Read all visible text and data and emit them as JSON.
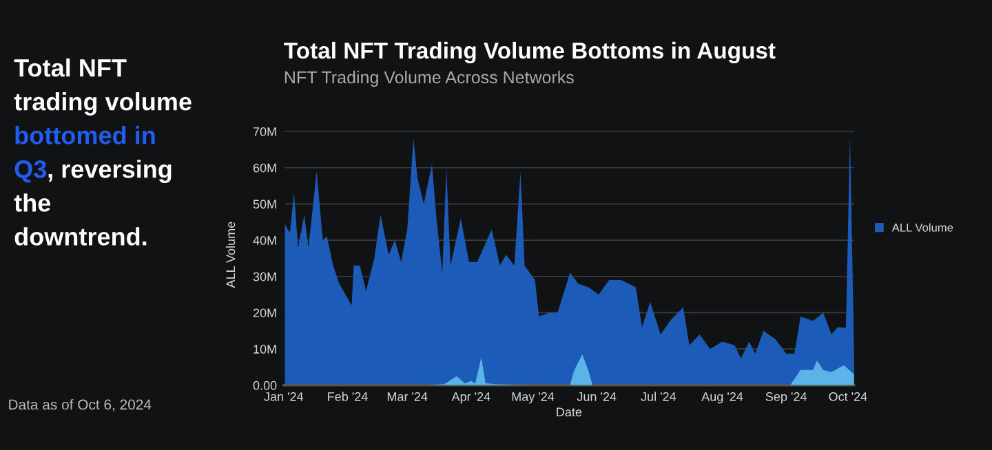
{
  "chart_data": {
    "type": "area",
    "title": "Total NFT Trading Volume Bottoms in August",
    "subtitle": "NFT Trading Volume Across Networks",
    "xlabel": "Date",
    "ylabel": "ALL Volume",
    "annotations": [
      "Total NFT",
      "trading volume",
      "bottomed in",
      "Q3",
      ", reversing",
      "the",
      "downtrend.",
      "Data as of Oct 6, 2024"
    ],
    "series": [
      {
        "name": "ALL Volume",
        "color": "#1c5cb8",
        "x": [
          "2024-01-01",
          "2024-01-04",
          "2024-01-06",
          "2024-01-08",
          "2024-01-11",
          "2024-01-13",
          "2024-01-17",
          "2024-01-20",
          "2024-01-22",
          "2024-01-25",
          "2024-01-28",
          "2024-01-30",
          "2024-02-03",
          "2024-02-04",
          "2024-02-07",
          "2024-02-10",
          "2024-02-14",
          "2024-02-17",
          "2024-02-21",
          "2024-02-24",
          "2024-02-27",
          "2024-03-01",
          "2024-03-04",
          "2024-03-06",
          "2024-03-09",
          "2024-03-13",
          "2024-03-15",
          "2024-03-18",
          "2024-03-20",
          "2024-03-22",
          "2024-03-27",
          "2024-03-31",
          "2024-04-04",
          "2024-04-11",
          "2024-04-15",
          "2024-04-18",
          "2024-04-22",
          "2024-04-25",
          "2024-04-27",
          "2024-05-02",
          "2024-05-04",
          "2024-05-09",
          "2024-05-13",
          "2024-05-19",
          "2024-05-23",
          "2024-05-28",
          "2024-06-02",
          "2024-06-07",
          "2024-06-13",
          "2024-06-20",
          "2024-06-23",
          "2024-06-27",
          "2024-07-02",
          "2024-07-07",
          "2024-07-13",
          "2024-07-16",
          "2024-07-21",
          "2024-07-26",
          "2024-08-01",
          "2024-08-07",
          "2024-08-10",
          "2024-08-14",
          "2024-08-17",
          "2024-08-21",
          "2024-08-27",
          "2024-09-01",
          "2024-09-05",
          "2024-09-08",
          "2024-09-14",
          "2024-09-19",
          "2024-09-23",
          "2024-09-26",
          "2024-09-30",
          "2024-10-02",
          "2024-10-04"
        ],
        "values": [
          45,
          42,
          53,
          38,
          47,
          38,
          59,
          40,
          41,
          33,
          28,
          26,
          22,
          33,
          33,
          26,
          35,
          47,
          36,
          40,
          34,
          43,
          68,
          57,
          50,
          61,
          47,
          31,
          60,
          33,
          46,
          34,
          34,
          43,
          33,
          36,
          33,
          59,
          33,
          29,
          19,
          20,
          20,
          31,
          28,
          27,
          25,
          29,
          29,
          27,
          16,
          23,
          14,
          18,
          21.5,
          11,
          14,
          10,
          12,
          11,
          7.4,
          12,
          8.7,
          15,
          12.6,
          8.7,
          8.7,
          19,
          17.7,
          20,
          14,
          16,
          15.8,
          69,
          8.7
        ]
      },
      {
        "color": "#5cb3ea",
        "x": [
          "2024-01-01",
          "2024-03-10",
          "2024-03-19",
          "2024-03-25",
          "2024-03-29",
          "2024-04-01",
          "2024-04-03",
          "2024-04-06",
          "2024-04-08",
          "2024-04-12",
          "2024-04-23",
          "2024-05-19",
          "2024-05-21",
          "2024-05-25",
          "2024-05-28",
          "2024-05-30",
          "2024-09-03",
          "2024-09-08",
          "2024-09-14",
          "2024-09-16",
          "2024-09-19",
          "2024-09-23",
          "2024-09-29",
          "2024-10-04"
        ],
        "values": [
          0,
          0,
          0.3,
          2.5,
          0.5,
          1.2,
          0.5,
          7.7,
          0.6,
          0.3,
          0.1,
          0,
          4,
          8.5,
          4,
          0,
          0,
          4.2,
          4.2,
          6.8,
          4.2,
          3.6,
          5.5,
          3
        ]
      }
    ],
    "xlim": [
      "2024-01-01",
      "2024-10-04"
    ],
    "xticks": [
      {
        "value": "2024-01-01",
        "label": "Jan '24"
      },
      {
        "value": "2024-02-01",
        "label": "Feb '24"
      },
      {
        "value": "2024-03-01",
        "label": "Mar '24"
      },
      {
        "value": "2024-04-01",
        "label": "Apr '24"
      },
      {
        "value": "2024-05-01",
        "label": "May '24"
      },
      {
        "value": "2024-06-01",
        "label": "Jun '24"
      },
      {
        "value": "2024-07-01",
        "label": "Jul '24"
      },
      {
        "value": "2024-08-01",
        "label": "Aug '24"
      },
      {
        "value": "2024-09-01",
        "label": "Sep '24"
      },
      {
        "value": "2024-10-01",
        "label": "Oct '24"
      }
    ],
    "ylim": [
      0,
      72
    ],
    "yticks": [
      {
        "value": 0,
        "label": "0.00"
      },
      {
        "value": 10,
        "label": "10M"
      },
      {
        "value": 20,
        "label": "20M"
      },
      {
        "value": 30,
        "label": "30M"
      },
      {
        "value": 40,
        "label": "40M"
      },
      {
        "value": 50,
        "label": "50M"
      },
      {
        "value": 60,
        "label": "60M"
      },
      {
        "value": 70,
        "label": "70M"
      }
    ],
    "grid": "y",
    "legend": "right"
  }
}
